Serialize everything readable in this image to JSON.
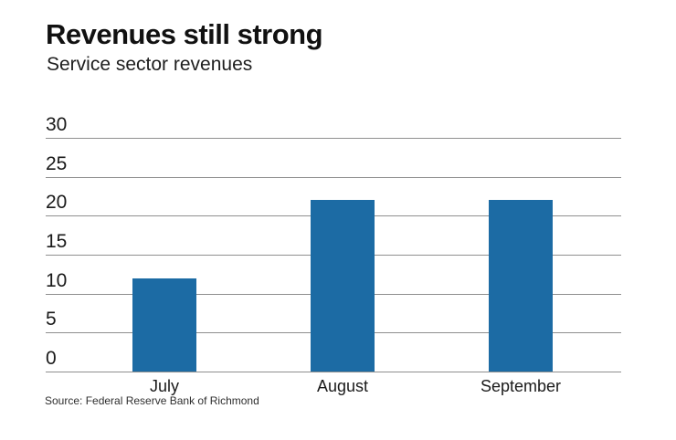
{
  "chart_data": {
    "type": "bar",
    "title": "Revenues still strong",
    "subtitle": "Service sector revenues",
    "categories": [
      "July",
      "August",
      "September"
    ],
    "values": [
      12,
      22,
      22
    ],
    "yticks": [
      30,
      25,
      20,
      15,
      10,
      5,
      0
    ],
    "ylim": [
      0,
      30
    ],
    "grid": true,
    "legend": "none",
    "bar_color": "#1c6ba4",
    "gridline_color": "#8f8f8f",
    "source": "Source: Federal Reserve Bank of Richmond"
  }
}
